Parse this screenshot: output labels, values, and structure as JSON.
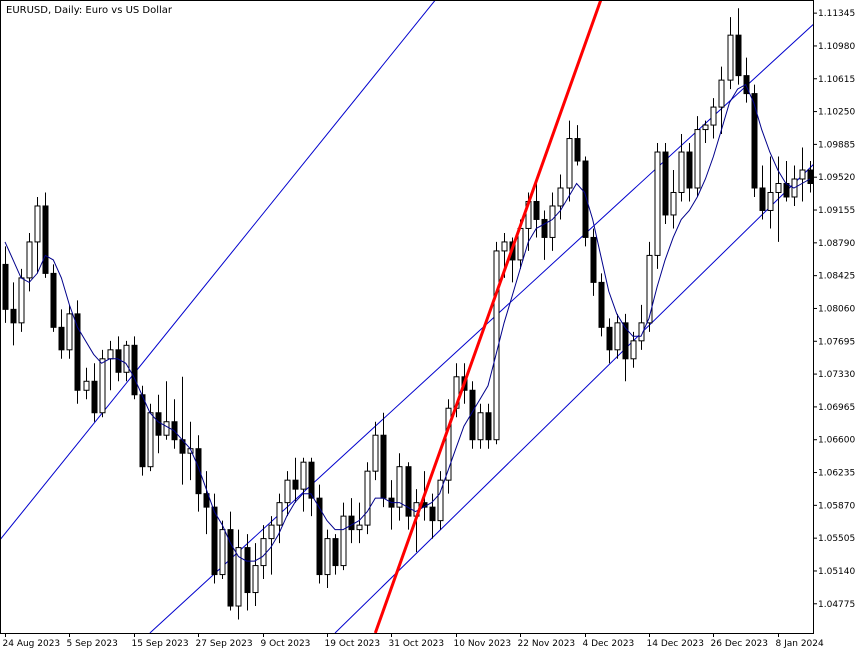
{
  "chart_data": {
    "type": "candlestick",
    "title": "EURUSD, Daily:  Euro vs US Dollar",
    "y_tick_labels": [
      "1.11345",
      "1.10980",
      "1.10615",
      "1.10250",
      "1.09885",
      "1.09520",
      "1.09155",
      "1.08790",
      "1.08425",
      "1.08060",
      "1.07695",
      "1.07330",
      "1.06965",
      "1.06600",
      "1.06235",
      "1.05870",
      "1.05505",
      "1.05140",
      "1.04775"
    ],
    "y_ticks": [
      1.11345,
      1.1098,
      1.10615,
      1.1025,
      1.09885,
      1.0952,
      1.09155,
      1.0879,
      1.08425,
      1.0806,
      1.07695,
      1.0733,
      1.06965,
      1.066,
      1.06235,
      1.0587,
      1.05505,
      1.0514,
      1.04775
    ],
    "x_tick_labels": [
      {
        "label": "24 Aug 2023",
        "index": 0
      },
      {
        "label": "5 Sep 2023",
        "index": 8
      },
      {
        "label": "15 Sep 2023",
        "index": 16
      },
      {
        "label": "27 Sep 2023",
        "index": 24
      },
      {
        "label": "9 Oct 2023",
        "index": 32
      },
      {
        "label": "19 Oct 2023",
        "index": 40
      },
      {
        "label": "31 Oct 2023",
        "index": 48
      },
      {
        "label": "10 Nov 2023",
        "index": 56
      },
      {
        "label": "22 Nov 2023",
        "index": 64
      },
      {
        "label": "4 Dec 2023",
        "index": 72
      },
      {
        "label": "14 Dec 2023",
        "index": 80
      },
      {
        "label": "26 Dec 2023",
        "index": 88
      },
      {
        "label": "8 Jan 2024",
        "index": 96
      }
    ],
    "ylim": [
      1.0445,
      1.1148
    ],
    "grid": false,
    "colors": {
      "background": "#ffffff",
      "candle_bull": "#ffffff",
      "candle_bear": "#000000",
      "candle_outline": "#000000",
      "moving_average": "#00008b",
      "channel": "#0000cd",
      "trendline": "#ff0000",
      "axis": "#000000"
    },
    "ohlc": [
      [
        1.0855,
        1.0875,
        1.079,
        1.0805
      ],
      [
        1.0805,
        1.0835,
        1.0765,
        1.079
      ],
      [
        1.079,
        1.085,
        1.078,
        1.084
      ],
      [
        1.084,
        1.089,
        1.0825,
        1.088
      ],
      [
        1.088,
        1.093,
        1.0845,
        1.092
      ],
      [
        1.092,
        1.0935,
        1.084,
        1.0845
      ],
      [
        1.0845,
        1.0855,
        1.078,
        1.0785
      ],
      [
        1.0785,
        1.0805,
        1.075,
        1.076
      ],
      [
        1.076,
        1.081,
        1.075,
        1.08
      ],
      [
        1.08,
        1.0815,
        1.07,
        1.0715
      ],
      [
        1.0715,
        1.074,
        1.0705,
        1.0725
      ],
      [
        1.0725,
        1.0745,
        1.068,
        1.069
      ],
      [
        1.069,
        1.076,
        1.0685,
        1.075
      ],
      [
        1.075,
        1.077,
        1.0715,
        1.076
      ],
      [
        1.076,
        1.0775,
        1.0725,
        1.0735
      ],
      [
        1.0735,
        1.077,
        1.0725,
        1.0765
      ],
      [
        1.0765,
        1.0775,
        1.0705,
        1.071
      ],
      [
        1.071,
        1.072,
        1.062,
        1.063
      ],
      [
        1.063,
        1.07,
        1.0625,
        1.069
      ],
      [
        1.069,
        1.071,
        1.0645,
        1.0665
      ],
      [
        1.0665,
        1.0725,
        1.066,
        1.068
      ],
      [
        1.068,
        1.0705,
        1.065,
        1.066
      ],
      [
        1.066,
        1.073,
        1.061,
        1.0645
      ],
      [
        1.0645,
        1.068,
        1.0615,
        1.065
      ],
      [
        1.065,
        1.0665,
        1.058,
        1.06
      ],
      [
        1.06,
        1.0625,
        1.0555,
        1.0585
      ],
      [
        1.0585,
        1.06,
        1.05,
        1.051
      ],
      [
        1.051,
        1.057,
        1.0505,
        1.056
      ],
      [
        1.056,
        1.058,
        1.047,
        1.0475
      ],
      [
        1.0475,
        1.056,
        1.046,
        1.054
      ],
      [
        1.054,
        1.0555,
        1.047,
        1.049
      ],
      [
        1.049,
        1.0545,
        1.0475,
        1.052
      ],
      [
        1.052,
        1.0565,
        1.0505,
        1.055
      ],
      [
        1.055,
        1.0575,
        1.051,
        1.0565
      ],
      [
        1.0565,
        1.06,
        1.0545,
        1.059
      ],
      [
        1.059,
        1.0625,
        1.0575,
        1.0615
      ],
      [
        1.0615,
        1.064,
        1.059,
        1.0605
      ],
      [
        1.0605,
        1.064,
        1.058,
        1.0635
      ],
      [
        1.0635,
        1.064,
        1.0575,
        1.0595
      ],
      [
        1.0595,
        1.061,
        1.05,
        1.051
      ],
      [
        1.051,
        1.056,
        1.0495,
        1.055
      ],
      [
        1.055,
        1.0555,
        1.051,
        1.052
      ],
      [
        1.052,
        1.059,
        1.0515,
        1.0575
      ],
      [
        1.0575,
        1.0595,
        1.0545,
        1.056
      ],
      [
        1.056,
        1.059,
        1.0545,
        1.0565
      ],
      [
        1.0565,
        1.0635,
        1.0555,
        1.0625
      ],
      [
        1.0625,
        1.068,
        1.0615,
        1.0665
      ],
      [
        1.0665,
        1.069,
        1.0585,
        1.0595
      ],
      [
        1.0595,
        1.0615,
        1.056,
        1.0585
      ],
      [
        1.0585,
        1.0645,
        1.057,
        1.063
      ],
      [
        1.063,
        1.0635,
        1.056,
        1.0575
      ],
      [
        1.0575,
        1.0605,
        1.0535,
        1.059
      ],
      [
        1.059,
        1.0625,
        1.057,
        1.0585
      ],
      [
        1.0585,
        1.06,
        1.055,
        1.057
      ],
      [
        1.057,
        1.0625,
        1.056,
        1.0615
      ],
      [
        1.0615,
        1.0705,
        1.06,
        1.0695
      ],
      [
        1.0695,
        1.0745,
        1.0685,
        1.073
      ],
      [
        1.073,
        1.0745,
        1.07,
        1.0715
      ],
      [
        1.0715,
        1.0725,
        1.065,
        1.066
      ],
      [
        1.066,
        1.07,
        1.065,
        1.069
      ],
      [
        1.069,
        1.07,
        1.065,
        1.066
      ],
      [
        1.066,
        1.088,
        1.0655,
        1.087
      ],
      [
        1.087,
        1.089,
        1.084,
        1.088
      ],
      [
        1.088,
        1.0885,
        1.0835,
        1.086
      ],
      [
        1.086,
        1.0905,
        1.085,
        1.0895
      ],
      [
        1.0895,
        1.0935,
        1.087,
        1.0925
      ],
      [
        1.0925,
        1.095,
        1.0885,
        1.0905
      ],
      [
        1.0905,
        1.0915,
        1.086,
        1.0885
      ],
      [
        1.0885,
        1.0935,
        1.087,
        1.092
      ],
      [
        1.092,
        1.0955,
        1.0905,
        1.094
      ],
      [
        1.094,
        1.1015,
        1.0925,
        1.0995
      ],
      [
        1.0995,
        1.101,
        1.0965,
        1.097
      ],
      [
        1.097,
        1.0975,
        1.0875,
        1.0885
      ],
      [
        1.0885,
        1.0895,
        1.082,
        1.0835
      ],
      [
        1.0835,
        1.0845,
        1.0775,
        1.0785
      ],
      [
        1.0785,
        1.0795,
        1.0745,
        1.076
      ],
      [
        1.076,
        1.08,
        1.075,
        1.079
      ],
      [
        1.079,
        1.08,
        1.0725,
        1.075
      ],
      [
        1.075,
        1.078,
        1.074,
        1.077
      ],
      [
        1.077,
        1.081,
        1.076,
        1.079
      ],
      [
        1.079,
        1.088,
        1.078,
        1.0865
      ],
      [
        1.0865,
        1.099,
        1.085,
        1.098
      ],
      [
        1.098,
        1.099,
        1.09,
        1.091
      ],
      [
        1.091,
        1.096,
        1.0895,
        1.0935
      ],
      [
        1.0935,
        1.1,
        1.0925,
        1.098
      ],
      [
        1.098,
        1.099,
        1.0925,
        1.094
      ],
      [
        1.094,
        1.102,
        1.093,
        1.1005
      ],
      [
        1.1005,
        1.1015,
        1.099,
        1.101
      ],
      [
        1.101,
        1.104,
        1.0995,
        1.103
      ],
      [
        1.103,
        1.1075,
        1.1,
        1.106
      ],
      [
        1.106,
        1.113,
        1.105,
        1.111
      ],
      [
        1.111,
        1.114,
        1.1055,
        1.1065
      ],
      [
        1.1065,
        1.1085,
        1.1035,
        1.1045
      ],
      [
        1.1045,
        1.1055,
        1.093,
        1.094
      ],
      [
        1.094,
        1.0965,
        1.0905,
        1.0915
      ],
      [
        1.0915,
        1.0975,
        1.0895,
        1.0935
      ],
      [
        1.0935,
        1.0975,
        1.088,
        1.0945
      ],
      [
        1.0945,
        1.097,
        1.0925,
        1.093
      ],
      [
        1.093,
        1.0965,
        1.092,
        1.095
      ],
      [
        1.095,
        1.0985,
        1.0925,
        1.096
      ],
      [
        1.096,
        1.097,
        1.0935,
        1.0945
      ]
    ],
    "moving_average": [
      1.088,
      1.086,
      1.084,
      1.0835,
      1.0845,
      1.0865,
      1.086,
      1.084,
      1.081,
      1.0785,
      1.077,
      1.0755,
      1.0745,
      1.075,
      1.075,
      1.0745,
      1.073,
      1.071,
      1.069,
      1.068,
      1.0675,
      1.067,
      1.066,
      1.065,
      1.063,
      1.0605,
      1.058,
      1.0565,
      1.0545,
      1.053,
      1.0525,
      1.0525,
      1.053,
      1.054,
      1.0555,
      1.0575,
      1.059,
      1.06,
      1.06,
      1.0585,
      1.057,
      1.056,
      1.056,
      1.0565,
      1.057,
      1.058,
      1.0595,
      1.0595,
      1.059,
      1.059,
      1.0585,
      1.058,
      1.0585,
      1.059,
      1.06,
      1.0625,
      1.065,
      1.0675,
      1.069,
      1.0705,
      1.072,
      1.0755,
      1.079,
      1.082,
      1.085,
      1.088,
      1.0895,
      1.09,
      1.0905,
      1.0915,
      1.093,
      1.0945,
      1.0935,
      1.0905,
      1.0865,
      1.0825,
      1.08,
      1.0785,
      1.0775,
      1.0775,
      1.0795,
      1.083,
      1.086,
      1.0885,
      1.0905,
      1.0915,
      1.093,
      1.095,
      1.0975,
      1.1005,
      1.1035,
      1.105,
      1.1055,
      1.1035,
      1.1005,
      1.098,
      1.096,
      1.0945,
      1.094,
      1.0945,
      1.095
    ],
    "channel_lines": [
      {
        "from": [
          -5,
          1.05
        ],
        "to": [
          72,
          1.1355
        ]
      },
      {
        "from": [
          18,
          1.0445
        ],
        "to": [
          102,
          1.1135
        ]
      },
      {
        "from": [
          41,
          1.0445
        ],
        "to": [
          102,
          1.098
        ]
      }
    ],
    "red_trendline": {
      "from": [
        46,
        1.0445
      ],
      "to": [
        83,
        1.1375
      ]
    }
  }
}
